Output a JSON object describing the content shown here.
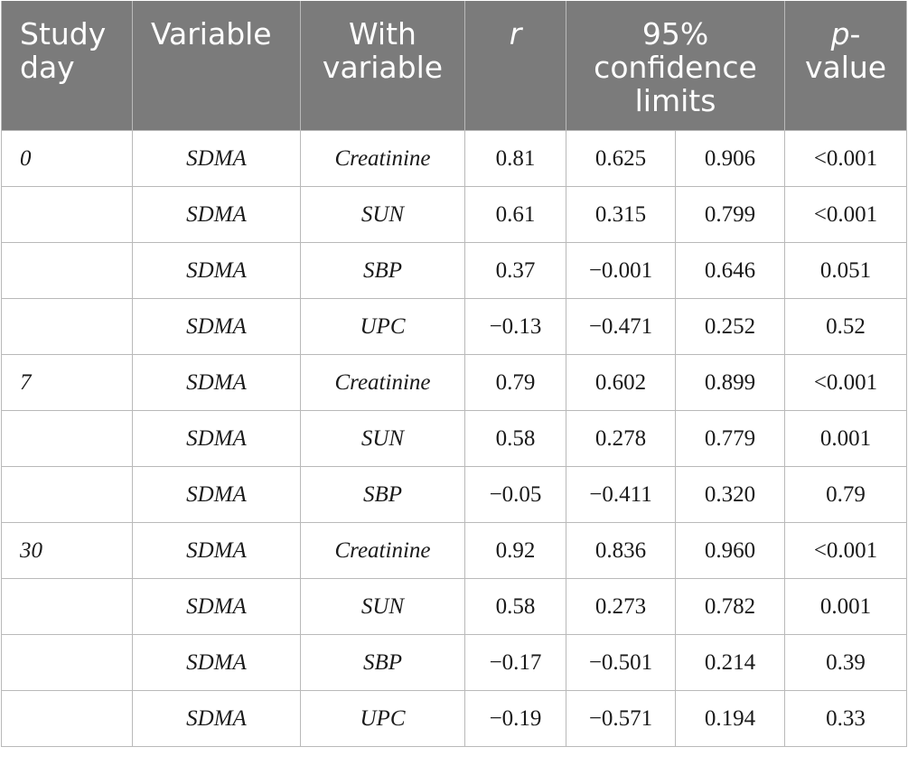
{
  "header": {
    "study_day": "Study day",
    "variable": "Variable",
    "with_variable": "With variable",
    "r": "r",
    "confidence": "95% confidence limits",
    "p_italic": "p",
    "p_rest": "-value"
  },
  "rows": [
    {
      "day": "0",
      "variable": "SDMA",
      "with": "Creatinine",
      "r": "0.81",
      "lo": "0.625",
      "hi": "0.906",
      "p": "<0.001"
    },
    {
      "day": "",
      "variable": "SDMA",
      "with": "SUN",
      "r": "0.61",
      "lo": "0.315",
      "hi": "0.799",
      "p": "<0.001"
    },
    {
      "day": "",
      "variable": "SDMA",
      "with": "SBP",
      "r": "0.37",
      "lo": "−0.001",
      "hi": "0.646",
      "p": "0.051"
    },
    {
      "day": "",
      "variable": "SDMA",
      "with": "UPC",
      "r": "−0.13",
      "lo": "−0.471",
      "hi": "0.252",
      "p": "0.52"
    },
    {
      "day": "7",
      "variable": "SDMA",
      "with": "Creatinine",
      "r": "0.79",
      "lo": "0.602",
      "hi": "0.899",
      "p": "<0.001"
    },
    {
      "day": "",
      "variable": "SDMA",
      "with": "SUN",
      "r": "0.58",
      "lo": "0.278",
      "hi": "0.779",
      "p": "0.001"
    },
    {
      "day": "",
      "variable": "SDMA",
      "with": "SBP",
      "r": "−0.05",
      "lo": "−0.411",
      "hi": "0.320",
      "p": "0.79"
    },
    {
      "day": "30",
      "variable": "SDMA",
      "with": "Creatinine",
      "r": "0.92",
      "lo": "0.836",
      "hi": "0.960",
      "p": "<0.001"
    },
    {
      "day": "",
      "variable": "SDMA",
      "with": "SUN",
      "r": "0.58",
      "lo": "0.273",
      "hi": "0.782",
      "p": "0.001"
    },
    {
      "day": "",
      "variable": "SDMA",
      "with": "SBP",
      "r": "−0.17",
      "lo": "−0.501",
      "hi": "0.214",
      "p": "0.39"
    },
    {
      "day": "",
      "variable": "SDMA",
      "with": "UPC",
      "r": "−0.19",
      "lo": "−0.571",
      "hi": "0.194",
      "p": "0.33"
    }
  ]
}
